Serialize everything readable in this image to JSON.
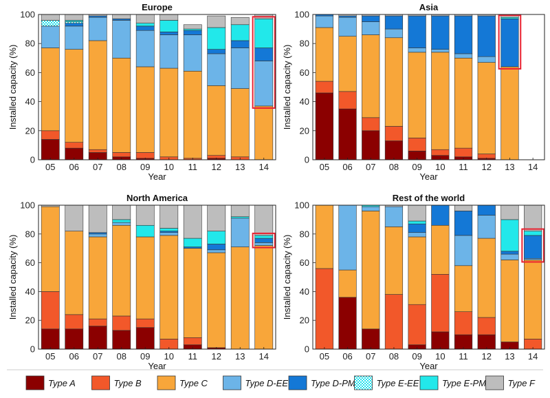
{
  "legend_items": [
    {
      "label": "Type A",
      "color": "#8B0000",
      "pattern": false
    },
    {
      "label": "Type B",
      "color": "#F2582A",
      "pattern": false
    },
    {
      "label": "Type C",
      "color": "#F8A63A",
      "pattern": false
    },
    {
      "label": "Type D-EE",
      "color": "#6CB4E8",
      "pattern": false
    },
    {
      "label": "Type D-PM",
      "color": "#1478D6",
      "pattern": false
    },
    {
      "label": "Type E-EE",
      "color": "#22E1EE",
      "pattern": true
    },
    {
      "label": "Type E-PM",
      "color": "#22E8EA",
      "pattern": false
    },
    {
      "label": "Type F",
      "color": "#BDBDBD",
      "pattern": false
    }
  ],
  "chart_data": [
    {
      "type": "bar",
      "stacked": true,
      "title": "Europe",
      "xlabel": "Year",
      "ylabel": "Installed capacity (%)",
      "ylim": [
        0,
        100
      ],
      "yticks": [
        0,
        20,
        40,
        60,
        80,
        100
      ],
      "categories": [
        "05",
        "06",
        "07",
        "08",
        "09",
        "10",
        "11",
        "12",
        "13",
        "14"
      ],
      "highlight": "14",
      "series": [
        {
          "name": "Type A",
          "values": [
            14,
            8,
            5,
            2,
            1,
            0,
            0,
            1,
            0,
            0
          ]
        },
        {
          "name": "Type B",
          "values": [
            6,
            4,
            2,
            3,
            4,
            2,
            1,
            2,
            2,
            0
          ]
        },
        {
          "name": "Type C",
          "values": [
            57,
            64,
            75,
            65,
            59,
            61,
            60,
            48,
            47,
            37
          ]
        },
        {
          "name": "Type D-EE",
          "values": [
            15,
            16,
            16,
            26,
            25,
            23,
            25,
            22,
            28,
            31
          ]
        },
        {
          "name": "Type D-PM",
          "values": [
            0,
            2,
            1,
            1,
            3,
            2,
            3,
            3,
            5,
            9
          ]
        },
        {
          "name": "Type E-EE",
          "values": [
            4,
            1,
            0,
            0,
            0,
            0,
            0,
            0,
            0,
            0
          ]
        },
        {
          "name": "Type E-PM",
          "values": [
            0,
            1,
            0,
            0,
            2,
            8,
            1,
            15,
            11,
            20
          ]
        },
        {
          "name": "Type F",
          "values": [
            4,
            4,
            1,
            3,
            6,
            4,
            3,
            8,
            5,
            3
          ]
        }
      ]
    },
    {
      "type": "bar",
      "stacked": true,
      "title": "Asia",
      "xlabel": "Year",
      "ylabel": "Installed capacity (%)",
      "ylim": [
        0,
        100
      ],
      "yticks": [
        0,
        20,
        40,
        60,
        80,
        100
      ],
      "categories": [
        "05",
        "06",
        "07",
        "08",
        "09",
        "10",
        "11",
        "12",
        "13",
        "14"
      ],
      "highlight": "13",
      "series": [
        {
          "name": "Type A",
          "values": [
            46,
            35,
            20,
            13,
            6,
            3,
            2,
            1,
            0,
            0
          ]
        },
        {
          "name": "Type B",
          "values": [
            8,
            12,
            9,
            10,
            9,
            4,
            6,
            3,
            0,
            0
          ]
        },
        {
          "name": "Type C",
          "values": [
            37,
            38,
            57,
            61,
            59,
            67,
            62,
            63,
            64,
            0
          ]
        },
        {
          "name": "Type D-EE",
          "values": [
            8,
            13,
            9,
            6,
            3,
            2,
            3,
            4,
            0,
            0
          ]
        },
        {
          "name": "Type D-PM",
          "values": [
            1,
            1,
            4,
            9,
            22,
            23,
            26,
            28,
            33,
            0
          ]
        },
        {
          "name": "Type E-EE",
          "values": [
            0,
            0,
            0,
            0,
            0,
            0,
            0,
            0,
            0,
            0
          ]
        },
        {
          "name": "Type E-PM",
          "values": [
            0,
            0,
            0,
            0,
            0,
            0,
            0,
            0,
            1,
            0
          ]
        },
        {
          "name": "Type F",
          "values": [
            0,
            1,
            1,
            1,
            1,
            1,
            1,
            1,
            2,
            0
          ]
        }
      ]
    },
    {
      "type": "bar",
      "stacked": true,
      "title": "North America",
      "xlabel": "Year",
      "ylabel": "Installed capacity (%)",
      "ylim": [
        0,
        100
      ],
      "yticks": [
        0,
        20,
        40,
        60,
        80,
        100
      ],
      "categories": [
        "05",
        "06",
        "07",
        "08",
        "09",
        "10",
        "11",
        "12",
        "13",
        "14"
      ],
      "highlight": "14",
      "series": [
        {
          "name": "Type A",
          "values": [
            14,
            14,
            16,
            13,
            15,
            0,
            3,
            1,
            0,
            0
          ]
        },
        {
          "name": "Type B",
          "values": [
            26,
            10,
            5,
            10,
            6,
            7,
            5,
            0,
            0,
            0
          ]
        },
        {
          "name": "Type C",
          "values": [
            59,
            58,
            57,
            63,
            57,
            72,
            62,
            66,
            71,
            72
          ]
        },
        {
          "name": "Type D-EE",
          "values": [
            0,
            0,
            2,
            2,
            0,
            2,
            0,
            2,
            20,
            2
          ]
        },
        {
          "name": "Type D-PM",
          "values": [
            0,
            0,
            1,
            0,
            0,
            1,
            1,
            4,
            0,
            3
          ]
        },
        {
          "name": "Type E-EE",
          "values": [
            0,
            0,
            0,
            0,
            0,
            0,
            0,
            0,
            0,
            0
          ]
        },
        {
          "name": "Type E-PM",
          "values": [
            0,
            0,
            0,
            2,
            8,
            2,
            6,
            9,
            1,
            2
          ]
        },
        {
          "name": "Type F",
          "values": [
            1,
            18,
            19,
            10,
            14,
            16,
            23,
            18,
            8,
            21
          ]
        }
      ]
    },
    {
      "type": "bar",
      "stacked": true,
      "title": "Rest of the world",
      "xlabel": "Year",
      "ylabel": "Installed capacity (%)",
      "ylim": [
        0,
        100
      ],
      "yticks": [
        0,
        20,
        40,
        60,
        80,
        100
      ],
      "categories": [
        "05",
        "06",
        "07",
        "08",
        "09",
        "10",
        "11",
        "12",
        "13",
        "14"
      ],
      "highlight": "14",
      "series": [
        {
          "name": "Type A",
          "values": [
            0,
            36,
            14,
            0,
            3,
            12,
            10,
            10,
            5,
            0
          ]
        },
        {
          "name": "Type B",
          "values": [
            56,
            0,
            0,
            38,
            28,
            40,
            16,
            12,
            0,
            7
          ]
        },
        {
          "name": "Type C",
          "values": [
            44,
            19,
            82,
            47,
            47,
            34,
            32,
            55,
            57,
            55
          ]
        },
        {
          "name": "Type D-EE",
          "values": [
            0,
            45,
            3,
            14,
            3,
            0,
            21,
            16,
            4,
            1
          ]
        },
        {
          "name": "Type D-PM",
          "values": [
            0,
            0,
            0,
            0,
            6,
            14,
            17,
            7,
            2,
            16
          ]
        },
        {
          "name": "Type E-EE",
          "values": [
            0,
            0,
            0,
            0,
            0,
            0,
            0,
            0,
            0,
            0
          ]
        },
        {
          "name": "Type E-PM",
          "values": [
            0,
            0,
            1,
            0,
            2,
            0,
            0,
            0,
            22,
            3
          ]
        },
        {
          "name": "Type F",
          "values": [
            0,
            0,
            0,
            1,
            11,
            0,
            4,
            0,
            10,
            18
          ]
        }
      ]
    }
  ]
}
